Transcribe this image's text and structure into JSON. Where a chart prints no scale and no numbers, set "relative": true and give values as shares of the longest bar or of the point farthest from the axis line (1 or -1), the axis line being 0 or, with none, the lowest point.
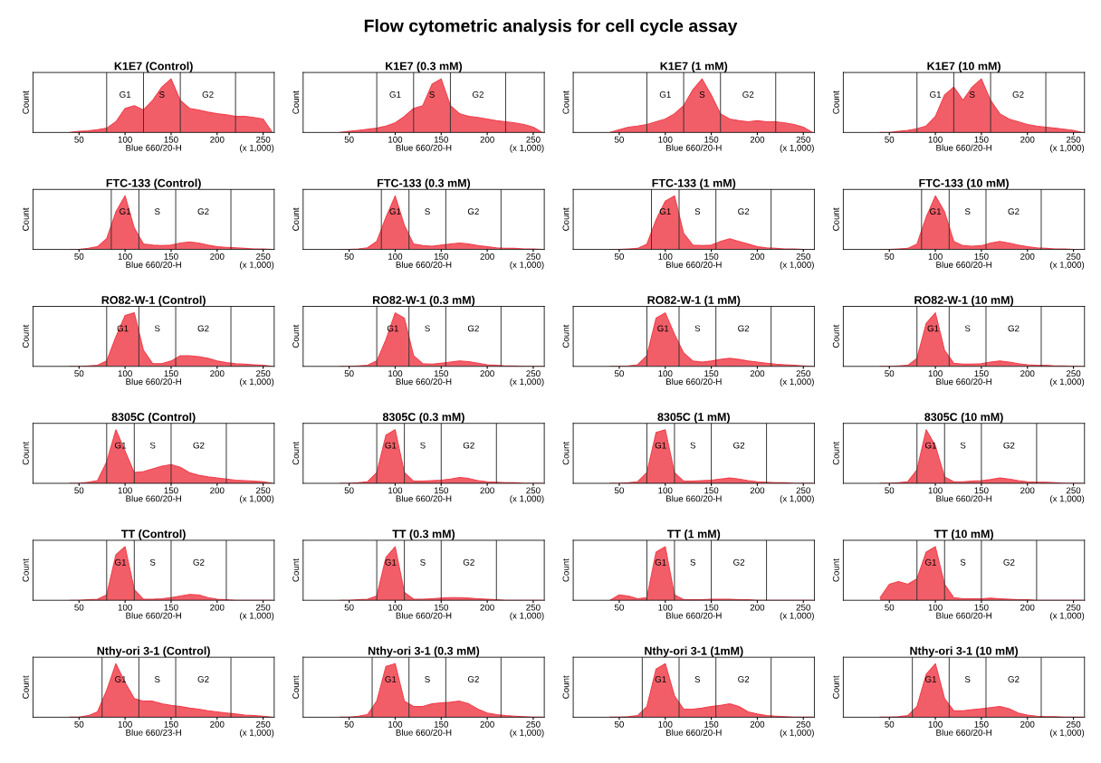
{
  "chart_data": [
    {
      "type": "other",
      "title": "Flow cytometric analysis for cell cycle assay"
    },
    {
      "type": "area",
      "title": "K1E7 (Control)",
      "xlabel": "Blue 660/20-H",
      "ylabel": "Count",
      "relative": true,
      "xlim": [
        0,
        262
      ],
      "xticks": [
        50,
        100,
        150,
        200,
        250
      ],
      "x": [
        40,
        50,
        60,
        70,
        80,
        90,
        100,
        110,
        120,
        130,
        140,
        150,
        160,
        170,
        180,
        190,
        200,
        210,
        220,
        230,
        240,
        250,
        260
      ],
      "series": [
        {
          "color": "#f0424e",
          "values": [
            0,
            0.02,
            0.03,
            0.05,
            0.08,
            0.2,
            0.45,
            0.5,
            0.42,
            0.6,
            0.85,
            1.0,
            0.6,
            0.45,
            0.42,
            0.38,
            0.35,
            0.33,
            0.3,
            0.3,
            0.28,
            0.25,
            0
          ]
        }
      ],
      "ref_lines": [
        {
          "axis": "x",
          "value": 80
        },
        {
          "axis": "x",
          "value": 120
        },
        {
          "axis": "x",
          "value": 160
        },
        {
          "axis": "x",
          "value": 220
        }
      ],
      "annotations": [
        "(x 1,000)",
        "G1",
        "S",
        "G2"
      ]
    },
    {
      "type": "area",
      "title": "K1E7 (0.3 mM)",
      "xlabel": "Blue 660/20-H",
      "ylabel": "Count",
      "relative": true,
      "xlim": [
        0,
        262
      ],
      "xticks": [
        50,
        100,
        150,
        200,
        250
      ],
      "x": [
        40,
        50,
        60,
        70,
        80,
        90,
        100,
        110,
        120,
        130,
        140,
        150,
        160,
        170,
        180,
        190,
        200,
        210,
        220,
        230,
        240,
        250,
        260
      ],
      "series": [
        {
          "color": "#f0424e",
          "values": [
            0,
            0.02,
            0.04,
            0.06,
            0.08,
            0.12,
            0.18,
            0.3,
            0.45,
            0.5,
            0.9,
            1.0,
            0.5,
            0.35,
            0.3,
            0.28,
            0.25,
            0.22,
            0.2,
            0.18,
            0.15,
            0.1,
            0
          ]
        }
      ],
      "ref_lines": [
        {
          "axis": "x",
          "value": 80
        },
        {
          "axis": "x",
          "value": 120
        },
        {
          "axis": "x",
          "value": 160
        },
        {
          "axis": "x",
          "value": 220
        }
      ],
      "annotations": [
        "(x 1,000)",
        "G1",
        "S",
        "G2"
      ]
    },
    {
      "type": "area",
      "title": "K1E7 (1 mM)",
      "xlabel": "Blue 660/20-H",
      "ylabel": "Count",
      "relative": true,
      "xlim": [
        0,
        262
      ],
      "xticks": [
        50,
        100,
        150,
        200,
        250
      ],
      "x": [
        40,
        50,
        60,
        70,
        80,
        90,
        100,
        110,
        120,
        130,
        140,
        150,
        160,
        170,
        180,
        190,
        200,
        210,
        220,
        230,
        240,
        250,
        260
      ],
      "series": [
        {
          "color": "#f0424e",
          "values": [
            0,
            0.05,
            0.1,
            0.12,
            0.15,
            0.2,
            0.25,
            0.35,
            0.5,
            0.8,
            1.0,
            0.7,
            0.35,
            0.25,
            0.22,
            0.2,
            0.22,
            0.2,
            0.2,
            0.18,
            0.15,
            0.1,
            0
          ]
        }
      ],
      "ref_lines": [
        {
          "axis": "x",
          "value": 80
        },
        {
          "axis": "x",
          "value": 120
        },
        {
          "axis": "x",
          "value": 160
        },
        {
          "axis": "x",
          "value": 220
        }
      ],
      "annotations": [
        "(x 1,000)",
        "G1",
        "S",
        "G2"
      ]
    },
    {
      "type": "area",
      "title": "K1E7 (10 mM)",
      "xlabel": "Blue 660/20-H",
      "ylabel": "Count",
      "relative": true,
      "xlim": [
        0,
        262
      ],
      "xticks": [
        50,
        100,
        150,
        200,
        250
      ],
      "x": [
        40,
        50,
        60,
        70,
        80,
        90,
        100,
        110,
        120,
        130,
        140,
        150,
        160,
        170,
        180,
        190,
        200,
        210,
        220,
        230,
        240,
        250,
        260
      ],
      "series": [
        {
          "color": "#f0424e",
          "values": [
            0,
            0,
            0.02,
            0.04,
            0.07,
            0.12,
            0.3,
            0.7,
            0.85,
            0.6,
            0.85,
            1.0,
            0.6,
            0.35,
            0.25,
            0.2,
            0.15,
            0.12,
            0.1,
            0.08,
            0.06,
            0.04,
            0
          ]
        }
      ],
      "ref_lines": [
        {
          "axis": "x",
          "value": 80
        },
        {
          "axis": "x",
          "value": 120
        },
        {
          "axis": "x",
          "value": 160
        },
        {
          "axis": "x",
          "value": 220
        }
      ],
      "annotations": [
        "(x 1,000)",
        "G1",
        "S",
        "G2"
      ]
    },
    {
      "type": "area",
      "title": "FTC-133 (Control)",
      "xlabel": "Blue 660/20-H",
      "ylabel": "Count",
      "relative": true,
      "xlim": [
        0,
        262
      ],
      "xticks": [
        50,
        100,
        150,
        200,
        250
      ],
      "x": [
        40,
        50,
        60,
        70,
        80,
        90,
        100,
        110,
        120,
        130,
        140,
        150,
        160,
        170,
        180,
        190,
        200,
        210,
        220,
        230,
        240,
        250,
        260
      ],
      "series": [
        {
          "color": "#f0424e",
          "values": [
            0,
            0,
            0.02,
            0.05,
            0.2,
            0.7,
            1.0,
            0.4,
            0.1,
            0.08,
            0.07,
            0.08,
            0.12,
            0.14,
            0.12,
            0.08,
            0.05,
            0.04,
            0.03,
            0.02,
            0.01,
            0.01,
            0
          ]
        }
      ],
      "ref_lines": [
        {
          "axis": "x",
          "value": 85
        },
        {
          "axis": "x",
          "value": 115
        },
        {
          "axis": "x",
          "value": 155
        },
        {
          "axis": "x",
          "value": 215
        }
      ],
      "annotations": [
        "(x 1,000)",
        "G1",
        "S",
        "G2"
      ]
    },
    {
      "type": "area",
      "title": "FTC-133 (0.3 mM)",
      "xlabel": "Blue 660/20-H",
      "ylabel": "Count",
      "relative": true,
      "xlim": [
        0,
        262
      ],
      "xticks": [
        50,
        100,
        150,
        200,
        250
      ],
      "x": [
        40,
        50,
        60,
        70,
        80,
        90,
        100,
        110,
        120,
        130,
        140,
        150,
        160,
        170,
        180,
        190,
        200,
        210,
        220,
        230,
        240,
        250,
        260
      ],
      "series": [
        {
          "color": "#f0424e",
          "values": [
            0,
            0,
            0.01,
            0.03,
            0.15,
            0.6,
            1.0,
            0.45,
            0.1,
            0.07,
            0.06,
            0.08,
            0.1,
            0.12,
            0.1,
            0.07,
            0.05,
            0.03,
            0.02,
            0.02,
            0.01,
            0.01,
            0
          ]
        }
      ],
      "ref_lines": [
        {
          "axis": "x",
          "value": 85
        },
        {
          "axis": "x",
          "value": 115
        },
        {
          "axis": "x",
          "value": 155
        },
        {
          "axis": "x",
          "value": 215
        }
      ],
      "annotations": [
        "(x 1,000)",
        "G1",
        "S",
        "G2"
      ]
    },
    {
      "type": "area",
      "title": "FTC-133 (1 mM)",
      "xlabel": "Blue 660/20-H",
      "ylabel": "Count",
      "relative": true,
      "xlim": [
        0,
        262
      ],
      "xticks": [
        50,
        100,
        150,
        200,
        250
      ],
      "x": [
        40,
        50,
        60,
        70,
        80,
        90,
        100,
        110,
        120,
        130,
        140,
        150,
        160,
        170,
        180,
        190,
        200,
        210,
        220,
        230,
        240,
        250,
        260
      ],
      "series": [
        {
          "color": "#f0424e",
          "values": [
            0,
            0,
            0.01,
            0.02,
            0.1,
            0.55,
            0.9,
            1.0,
            0.3,
            0.08,
            0.07,
            0.08,
            0.15,
            0.2,
            0.15,
            0.1,
            0.05,
            0.03,
            0.02,
            0.01,
            0.01,
            0,
            0
          ]
        }
      ],
      "ref_lines": [
        {
          "axis": "x",
          "value": 85
        },
        {
          "axis": "x",
          "value": 115
        },
        {
          "axis": "x",
          "value": 155
        },
        {
          "axis": "x",
          "value": 215
        }
      ],
      "annotations": [
        "(x 1,000)",
        "G1",
        "S",
        "G2"
      ]
    },
    {
      "type": "area",
      "title": "FTC-133 (10 mM)",
      "xlabel": "Blue 660/20-H",
      "ylabel": "Count",
      "relative": true,
      "xlim": [
        0,
        262
      ],
      "xticks": [
        50,
        100,
        150,
        200,
        250
      ],
      "x": [
        40,
        50,
        60,
        70,
        80,
        90,
        100,
        110,
        120,
        130,
        140,
        150,
        160,
        170,
        180,
        190,
        200,
        210,
        220,
        230,
        240,
        250,
        260
      ],
      "series": [
        {
          "color": "#f0424e",
          "values": [
            0,
            0,
            0.01,
            0.02,
            0.1,
            0.6,
            1.0,
            0.7,
            0.15,
            0.07,
            0.06,
            0.07,
            0.12,
            0.15,
            0.12,
            0.08,
            0.05,
            0.03,
            0.02,
            0.01,
            0.01,
            0,
            0
          ]
        }
      ],
      "ref_lines": [
        {
          "axis": "x",
          "value": 85
        },
        {
          "axis": "x",
          "value": 115
        },
        {
          "axis": "x",
          "value": 155
        },
        {
          "axis": "x",
          "value": 215
        }
      ],
      "annotations": [
        "(x 1,000)",
        "G1",
        "S",
        "G2"
      ]
    },
    {
      "type": "area",
      "title": "RO82-W-1 (Control)",
      "xlabel": "Blue 660/20-H",
      "ylabel": "Count",
      "relative": true,
      "xlim": [
        0,
        262
      ],
      "xticks": [
        50,
        100,
        150,
        200,
        250
      ],
      "x": [
        40,
        50,
        60,
        70,
        80,
        90,
        100,
        110,
        120,
        130,
        140,
        150,
        160,
        170,
        180,
        190,
        200,
        210,
        220,
        230,
        240,
        250,
        260
      ],
      "series": [
        {
          "color": "#f0424e",
          "values": [
            0,
            0,
            0.01,
            0.02,
            0.1,
            0.55,
            0.95,
            1.0,
            0.3,
            0.05,
            0.05,
            0.1,
            0.2,
            0.2,
            0.18,
            0.15,
            0.1,
            0.07,
            0.05,
            0.04,
            0.03,
            0.02,
            0
          ]
        }
      ],
      "ref_lines": [
        {
          "axis": "x",
          "value": 80
        },
        {
          "axis": "x",
          "value": 115
        },
        {
          "axis": "x",
          "value": 155
        },
        {
          "axis": "x",
          "value": 215
        }
      ],
      "annotations": [
        "(x 1,000)",
        "G1",
        "S",
        "G2"
      ]
    },
    {
      "type": "area",
      "title": "RO82-W-1 (0.3 mM)",
      "xlabel": "Blue 660/20-H",
      "ylabel": "Count",
      "relative": true,
      "xlim": [
        0,
        262
      ],
      "xticks": [
        50,
        100,
        150,
        200,
        250
      ],
      "x": [
        40,
        50,
        60,
        70,
        80,
        90,
        100,
        110,
        120,
        130,
        140,
        150,
        160,
        170,
        180,
        190,
        200,
        210,
        220,
        230,
        240,
        250,
        260
      ],
      "series": [
        {
          "color": "#f0424e",
          "values": [
            0,
            0,
            0.01,
            0.02,
            0.1,
            0.5,
            1.0,
            0.9,
            0.2,
            0.05,
            0.04,
            0.06,
            0.08,
            0.1,
            0.09,
            0.06,
            0.03,
            0.02,
            0.01,
            0.01,
            0,
            0,
            0
          ]
        }
      ],
      "ref_lines": [
        {
          "axis": "x",
          "value": 80
        },
        {
          "axis": "x",
          "value": 115
        },
        {
          "axis": "x",
          "value": 155
        },
        {
          "axis": "x",
          "value": 215
        }
      ],
      "annotations": [
        "(x 1,000)",
        "G1",
        "S",
        "G2"
      ]
    },
    {
      "type": "area",
      "title": "RO82-W-1 (1 mM)",
      "xlabel": "Blue 660/20-H",
      "ylabel": "Count",
      "relative": true,
      "xlim": [
        0,
        262
      ],
      "xticks": [
        50,
        100,
        150,
        200,
        250
      ],
      "x": [
        40,
        50,
        60,
        70,
        80,
        90,
        100,
        110,
        120,
        130,
        140,
        150,
        160,
        170,
        180,
        190,
        200,
        210,
        220,
        230,
        240,
        250,
        260
      ],
      "series": [
        {
          "color": "#f0424e",
          "values": [
            0,
            0,
            0.01,
            0.03,
            0.2,
            0.9,
            1.0,
            0.6,
            0.25,
            0.1,
            0.08,
            0.1,
            0.13,
            0.15,
            0.13,
            0.1,
            0.08,
            0.06,
            0.04,
            0.03,
            0.02,
            0.01,
            0
          ]
        }
      ],
      "ref_lines": [
        {
          "axis": "x",
          "value": 80
        },
        {
          "axis": "x",
          "value": 115
        },
        {
          "axis": "x",
          "value": 155
        },
        {
          "axis": "x",
          "value": 215
        }
      ],
      "annotations": [
        "(x 1,000)",
        "G1",
        "S",
        "G2"
      ]
    },
    {
      "type": "area",
      "title": "RO82-W-1 (10 mM)",
      "xlabel": "Blue 660/20-H",
      "ylabel": "Count",
      "relative": true,
      "xlim": [
        0,
        262
      ],
      "xticks": [
        50,
        100,
        150,
        200,
        250
      ],
      "x": [
        40,
        50,
        60,
        70,
        80,
        90,
        100,
        110,
        120,
        130,
        140,
        150,
        160,
        170,
        180,
        190,
        200,
        210,
        220,
        230,
        240,
        250,
        260
      ],
      "series": [
        {
          "color": "#f0424e",
          "values": [
            0,
            0,
            0.01,
            0.02,
            0.15,
            0.8,
            1.0,
            0.3,
            0.06,
            0.04,
            0.04,
            0.05,
            0.08,
            0.1,
            0.08,
            0.05,
            0.03,
            0.02,
            0.02,
            0.01,
            0.01,
            0,
            0
          ]
        }
      ],
      "ref_lines": [
        {
          "axis": "x",
          "value": 80
        },
        {
          "axis": "x",
          "value": 115
        },
        {
          "axis": "x",
          "value": 155
        },
        {
          "axis": "x",
          "value": 215
        }
      ],
      "annotations": [
        "(x 1,000)",
        "G1",
        "S",
        "G2"
      ]
    },
    {
      "type": "area",
      "title": "8305C (Control)",
      "xlabel": "Blue 660/20-H",
      "ylabel": "Count",
      "relative": true,
      "xlim": [
        0,
        262
      ],
      "xticks": [
        50,
        100,
        150,
        200,
        250
      ],
      "x": [
        40,
        50,
        60,
        70,
        80,
        90,
        100,
        110,
        120,
        130,
        140,
        150,
        160,
        170,
        180,
        190,
        200,
        210,
        220,
        230,
        240,
        250,
        260
      ],
      "series": [
        {
          "color": "#f0424e",
          "values": [
            0,
            0,
            0.02,
            0.05,
            0.4,
            1.0,
            0.6,
            0.2,
            0.22,
            0.27,
            0.32,
            0.35,
            0.3,
            0.2,
            0.15,
            0.12,
            0.1,
            0.08,
            0.06,
            0.05,
            0.04,
            0.03,
            0
          ]
        }
      ],
      "ref_lines": [
        {
          "axis": "x",
          "value": 80
        },
        {
          "axis": "x",
          "value": 110
        },
        {
          "axis": "x",
          "value": 150
        },
        {
          "axis": "x",
          "value": 210
        }
      ],
      "annotations": [
        "(x 1,000)",
        "G1",
        "S",
        "G2"
      ]
    },
    {
      "type": "area",
      "title": "8305C (0.3 mM)",
      "xlabel": "Blue 660/20-H",
      "ylabel": "Count",
      "relative": true,
      "xlim": [
        0,
        262
      ],
      "xticks": [
        50,
        100,
        150,
        200,
        250
      ],
      "x": [
        40,
        50,
        60,
        70,
        80,
        90,
        100,
        110,
        120,
        130,
        140,
        150,
        160,
        170,
        180,
        190,
        200,
        210,
        220,
        230,
        240,
        250,
        260
      ],
      "series": [
        {
          "color": "#f0424e",
          "values": [
            0,
            0,
            0.01,
            0.03,
            0.2,
            0.9,
            1.0,
            0.2,
            0.04,
            0.04,
            0.05,
            0.06,
            0.08,
            0.11,
            0.09,
            0.05,
            0.03,
            0.02,
            0.01,
            0.01,
            0,
            0,
            0
          ]
        }
      ],
      "ref_lines": [
        {
          "axis": "x",
          "value": 80
        },
        {
          "axis": "x",
          "value": 110
        },
        {
          "axis": "x",
          "value": 150
        },
        {
          "axis": "x",
          "value": 210
        }
      ],
      "annotations": [
        "(x 1,000)",
        "G1",
        "S",
        "G2"
      ]
    },
    {
      "type": "area",
      "title": "8305C (1 mM)",
      "xlabel": "Blue 660/20-H",
      "ylabel": "Count",
      "relative": true,
      "xlim": [
        0,
        262
      ],
      "xticks": [
        50,
        100,
        150,
        200,
        250
      ],
      "x": [
        40,
        50,
        60,
        70,
        80,
        90,
        100,
        110,
        120,
        130,
        140,
        150,
        160,
        170,
        180,
        190,
        200,
        210,
        220,
        230,
        240,
        250,
        260
      ],
      "series": [
        {
          "color": "#f0424e",
          "values": [
            0,
            0,
            0.01,
            0.03,
            0.2,
            0.95,
            1.0,
            0.2,
            0.04,
            0.04,
            0.05,
            0.06,
            0.08,
            0.1,
            0.08,
            0.05,
            0.03,
            0.02,
            0.01,
            0.01,
            0,
            0,
            0
          ]
        }
      ],
      "ref_lines": [
        {
          "axis": "x",
          "value": 80
        },
        {
          "axis": "x",
          "value": 110
        },
        {
          "axis": "x",
          "value": 150
        },
        {
          "axis": "x",
          "value": 210
        }
      ],
      "annotations": [
        "(x 1,000)",
        "G1",
        "S",
        "G2"
      ]
    },
    {
      "type": "area",
      "title": "8305C (10 mM)",
      "xlabel": "Blue 660/20-H",
      "ylabel": "Count",
      "relative": true,
      "xlim": [
        0,
        262
      ],
      "xticks": [
        50,
        100,
        150,
        200,
        250
      ],
      "x": [
        40,
        50,
        60,
        70,
        80,
        90,
        100,
        110,
        120,
        130,
        140,
        150,
        160,
        170,
        180,
        190,
        200,
        210,
        220,
        230,
        240,
        250,
        260
      ],
      "series": [
        {
          "color": "#f0424e",
          "values": [
            0,
            0,
            0.01,
            0.03,
            0.25,
            1.0,
            0.7,
            0.12,
            0.03,
            0.03,
            0.04,
            0.05,
            0.07,
            0.1,
            0.08,
            0.05,
            0.03,
            0.02,
            0.02,
            0.01,
            0,
            0,
            0
          ]
        }
      ],
      "ref_lines": [
        {
          "axis": "x",
          "value": 80
        },
        {
          "axis": "x",
          "value": 110
        },
        {
          "axis": "x",
          "value": 150
        },
        {
          "axis": "x",
          "value": 210
        }
      ],
      "annotations": [
        "(x 1,000)",
        "G1",
        "S",
        "G2"
      ]
    },
    {
      "type": "area",
      "title": "TT (Control)",
      "xlabel": "Blue 660/20-H",
      "ylabel": "Count",
      "relative": true,
      "xlim": [
        0,
        262
      ],
      "xticks": [
        50,
        100,
        150,
        200,
        250
      ],
      "x": [
        40,
        50,
        60,
        70,
        80,
        90,
        100,
        110,
        120,
        130,
        140,
        150,
        160,
        170,
        180,
        190,
        200,
        210,
        220,
        230,
        240,
        250,
        260
      ],
      "series": [
        {
          "color": "#f0424e",
          "values": [
            0,
            0,
            0.01,
            0.02,
            0.1,
            0.85,
            1.0,
            0.2,
            0.02,
            0.02,
            0.03,
            0.05,
            0.08,
            0.11,
            0.1,
            0.05,
            0.02,
            0.01,
            0,
            0,
            0,
            0,
            0
          ]
        }
      ],
      "ref_lines": [
        {
          "axis": "x",
          "value": 80
        },
        {
          "axis": "x",
          "value": 110
        },
        {
          "axis": "x",
          "value": 150
        },
        {
          "axis": "x",
          "value": 210
        }
      ],
      "annotations": [
        "(x 1,000)",
        "G1",
        "S",
        "G2"
      ]
    },
    {
      "type": "area",
      "title": "TT (0.3 mM)",
      "xlabel": "Blue 660/20-H",
      "ylabel": "Count",
      "relative": true,
      "xlim": [
        0,
        262
      ],
      "xticks": [
        50,
        100,
        150,
        200,
        250
      ],
      "x": [
        40,
        50,
        60,
        70,
        80,
        90,
        100,
        110,
        120,
        130,
        140,
        150,
        160,
        170,
        180,
        190,
        200,
        210,
        220,
        230,
        240,
        250,
        260
      ],
      "series": [
        {
          "color": "#f0424e",
          "values": [
            0,
            0,
            0.01,
            0.02,
            0.08,
            0.8,
            1.0,
            0.15,
            0.02,
            0.02,
            0.03,
            0.04,
            0.05,
            0.05,
            0.04,
            0.03,
            0.02,
            0.01,
            0,
            0,
            0,
            0,
            0
          ]
        }
      ],
      "ref_lines": [
        {
          "axis": "x",
          "value": 80
        },
        {
          "axis": "x",
          "value": 110
        },
        {
          "axis": "x",
          "value": 150
        },
        {
          "axis": "x",
          "value": 210
        }
      ],
      "annotations": [
        "(x 1,000)",
        "G1",
        "S",
        "G2"
      ]
    },
    {
      "type": "area",
      "title": "TT (1 mM)",
      "xlabel": "Blue 660/20-H",
      "ylabel": "Count",
      "relative": true,
      "xlim": [
        0,
        262
      ],
      "xticks": [
        50,
        100,
        150,
        200,
        250
      ],
      "x": [
        40,
        50,
        60,
        70,
        80,
        90,
        100,
        110,
        120,
        130,
        140,
        150,
        160,
        170,
        180,
        190,
        200,
        210,
        220,
        230,
        240,
        250,
        260
      ],
      "series": [
        {
          "color": "#f0424e",
          "values": [
            0,
            0.1,
            0.08,
            0.03,
            0.05,
            0.9,
            1.0,
            0.1,
            0.01,
            0.01,
            0.01,
            0.02,
            0.02,
            0.02,
            0.01,
            0.01,
            0,
            0,
            0,
            0,
            0,
            0,
            0
          ]
        }
      ],
      "ref_lines": [
        {
          "axis": "x",
          "value": 80
        },
        {
          "axis": "x",
          "value": 110
        },
        {
          "axis": "x",
          "value": 150
        },
        {
          "axis": "x",
          "value": 210
        }
      ],
      "annotations": [
        "(x 1,000)",
        "G1",
        "S",
        "G2"
      ]
    },
    {
      "type": "area",
      "title": "TT (10 mM)",
      "xlabel": "Blue 660/20-H",
      "ylabel": "Count",
      "relative": true,
      "xlim": [
        0,
        262
      ],
      "xticks": [
        50,
        100,
        150,
        200,
        250
      ],
      "x": [
        40,
        50,
        60,
        70,
        80,
        90,
        100,
        110,
        120,
        130,
        140,
        150,
        160,
        170,
        180,
        190,
        200,
        210,
        220,
        230,
        240,
        250,
        260
      ],
      "series": [
        {
          "color": "#f0424e",
          "values": [
            0.05,
            0.3,
            0.35,
            0.3,
            0.4,
            0.9,
            1.0,
            0.3,
            0.05,
            0.03,
            0.03,
            0.03,
            0.04,
            0.03,
            0.02,
            0.01,
            0.01,
            0,
            0,
            0,
            0,
            0,
            0
          ]
        }
      ],
      "ref_lines": [
        {
          "axis": "x",
          "value": 80
        },
        {
          "axis": "x",
          "value": 110
        },
        {
          "axis": "x",
          "value": 150
        },
        {
          "axis": "x",
          "value": 210
        }
      ],
      "annotations": [
        "(x 1,000)",
        "G1",
        "S",
        "G2"
      ]
    },
    {
      "type": "area",
      "title": "Nthy-ori 3-1 (Control)",
      "xlabel": "Blue 660/23-H",
      "ylabel": "Count",
      "relative": true,
      "xlim": [
        0,
        262
      ],
      "xticks": [
        50,
        100,
        150,
        200,
        250
      ],
      "x": [
        40,
        50,
        60,
        70,
        80,
        90,
        100,
        110,
        120,
        130,
        140,
        150,
        160,
        170,
        180,
        190,
        200,
        210,
        220,
        230,
        240,
        250,
        260
      ],
      "series": [
        {
          "color": "#f0424e",
          "values": [
            0,
            0,
            0.03,
            0.1,
            0.5,
            1.0,
            0.65,
            0.35,
            0.3,
            0.3,
            0.25,
            0.22,
            0.2,
            0.17,
            0.15,
            0.12,
            0.1,
            0.08,
            0.06,
            0.04,
            0.03,
            0.02,
            0
          ]
        }
      ],
      "ref_lines": [
        {
          "axis": "x",
          "value": 75
        },
        {
          "axis": "x",
          "value": 115
        },
        {
          "axis": "x",
          "value": 155
        },
        {
          "axis": "x",
          "value": 215
        }
      ],
      "annotations": [
        "(x 1,000)",
        "G1",
        "S",
        "G2"
      ]
    },
    {
      "type": "area",
      "title": "Nthy-ori 3-1 (0.3 mM)",
      "xlabel": "Blue 660/20-H",
      "ylabel": "Count",
      "relative": true,
      "xlim": [
        0,
        262
      ],
      "xticks": [
        50,
        100,
        150,
        200,
        250
      ],
      "x": [
        40,
        50,
        60,
        70,
        80,
        90,
        100,
        110,
        120,
        130,
        140,
        150,
        160,
        170,
        180,
        190,
        200,
        210,
        220,
        230,
        240,
        250,
        260
      ],
      "series": [
        {
          "color": "#f0424e",
          "values": [
            0,
            0,
            0.02,
            0.05,
            0.3,
            0.95,
            1.0,
            0.3,
            0.2,
            0.2,
            0.25,
            0.27,
            0.28,
            0.3,
            0.25,
            0.15,
            0.08,
            0.05,
            0.03,
            0.02,
            0.01,
            0,
            0
          ]
        }
      ],
      "ref_lines": [
        {
          "axis": "x",
          "value": 75
        },
        {
          "axis": "x",
          "value": 115
        },
        {
          "axis": "x",
          "value": 155
        },
        {
          "axis": "x",
          "value": 215
        }
      ],
      "annotations": [
        "(x 1,000)",
        "G1",
        "S",
        "G2"
      ]
    },
    {
      "type": "area",
      "title": "Nthy-ori 3-1 (1mM)",
      "xlabel": "Blue 660/20-H",
      "ylabel": "Count",
      "relative": true,
      "xlim": [
        0,
        262
      ],
      "xticks": [
        50,
        100,
        150,
        200,
        250
      ],
      "x": [
        40,
        50,
        60,
        70,
        80,
        90,
        100,
        110,
        120,
        130,
        140,
        150,
        160,
        170,
        180,
        190,
        200,
        210,
        220,
        230,
        240,
        250,
        260
      ],
      "series": [
        {
          "color": "#f0424e",
          "values": [
            0,
            0,
            0.01,
            0.03,
            0.2,
            0.9,
            1.0,
            0.4,
            0.15,
            0.15,
            0.17,
            0.2,
            0.22,
            0.25,
            0.2,
            0.1,
            0.06,
            0.03,
            0.02,
            0.01,
            0,
            0,
            0
          ]
        }
      ],
      "ref_lines": [
        {
          "axis": "x",
          "value": 75
        },
        {
          "axis": "x",
          "value": 115
        },
        {
          "axis": "x",
          "value": 155
        },
        {
          "axis": "x",
          "value": 215
        }
      ],
      "annotations": [
        "(x 1,000)",
        "G1",
        "S",
        "G2"
      ]
    },
    {
      "type": "area",
      "title": "Nthy-ori 3-1 (10 mM)",
      "xlabel": "Blue 660/20-H",
      "ylabel": "Count",
      "relative": true,
      "xlim": [
        0,
        262
      ],
      "xticks": [
        50,
        100,
        150,
        200,
        250
      ],
      "x": [
        40,
        50,
        60,
        70,
        80,
        90,
        100,
        110,
        120,
        130,
        140,
        150,
        160,
        170,
        180,
        190,
        200,
        210,
        220,
        230,
        240,
        250,
        260
      ],
      "series": [
        {
          "color": "#f0424e",
          "values": [
            0,
            0,
            0.01,
            0.03,
            0.2,
            0.8,
            1.0,
            0.35,
            0.12,
            0.12,
            0.14,
            0.16,
            0.18,
            0.2,
            0.16,
            0.08,
            0.04,
            0.02,
            0.01,
            0.01,
            0,
            0,
            0
          ]
        }
      ],
      "ref_lines": [
        {
          "axis": "x",
          "value": 75
        },
        {
          "axis": "x",
          "value": 115
        },
        {
          "axis": "x",
          "value": 155
        },
        {
          "axis": "x",
          "value": 215
        }
      ],
      "annotations": [
        "(x 1,000)",
        "G1",
        "S",
        "G2"
      ]
    }
  ]
}
